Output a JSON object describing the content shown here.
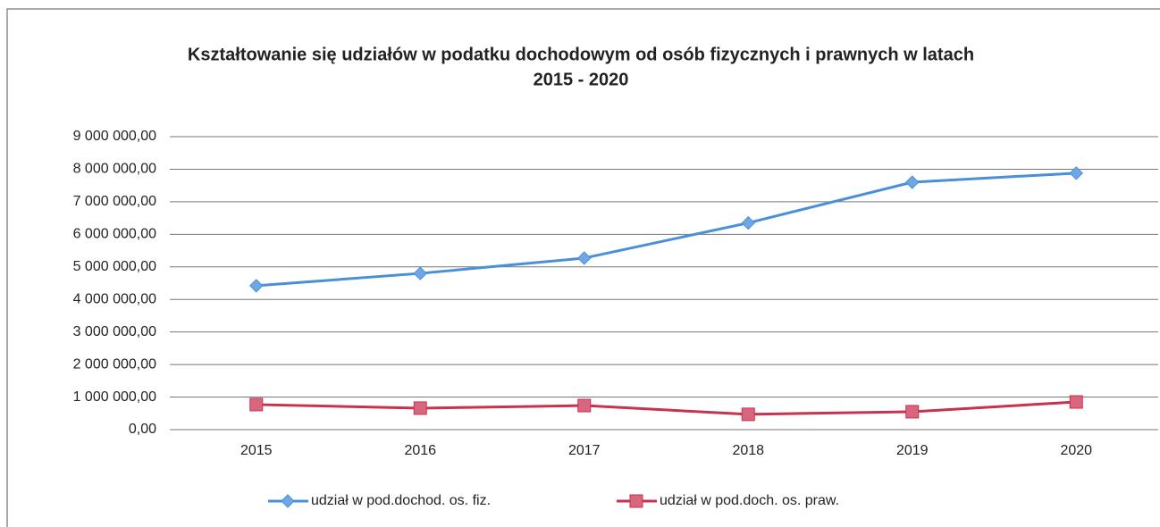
{
  "chart_data": {
    "type": "line",
    "title": [
      "Kształtowanie się udziałów w podatku dochodowym od osób fizycznych i prawnych w latach",
      "2015 - 2020"
    ],
    "categories": [
      "2015",
      "2016",
      "2017",
      "2018",
      "2019",
      "2020"
    ],
    "series": [
      {
        "name": "udział w pod.dochod. os. fiz.",
        "color": "#4a8fd9",
        "marker": "diamond",
        "values": [
          4420000,
          4800000,
          5270000,
          6350000,
          7600000,
          7880000
        ]
      },
      {
        "name": "udział w pod.doch. os. praw.",
        "color": "#c8324f",
        "marker": "square",
        "values": [
          770000,
          660000,
          740000,
          470000,
          550000,
          850000
        ]
      }
    ],
    "ylim": [
      0,
      9000000
    ],
    "yticks": [
      {
        "value": 0,
        "label": "0,00"
      },
      {
        "value": 1000000,
        "label": "1 000 000,00"
      },
      {
        "value": 2000000,
        "label": "2 000 000,00"
      },
      {
        "value": 3000000,
        "label": "3 000 000,00"
      },
      {
        "value": 4000000,
        "label": "4 000 000,00"
      },
      {
        "value": 5000000,
        "label": "5 000 000,00"
      },
      {
        "value": 6000000,
        "label": "6 000 000,00"
      },
      {
        "value": 7000000,
        "label": "7 000 000,00"
      },
      {
        "value": 8000000,
        "label": "8 000 000,00"
      },
      {
        "value": 9000000,
        "label": "9 000 000,00"
      }
    ],
    "grid": true,
    "legend": "bottom"
  }
}
